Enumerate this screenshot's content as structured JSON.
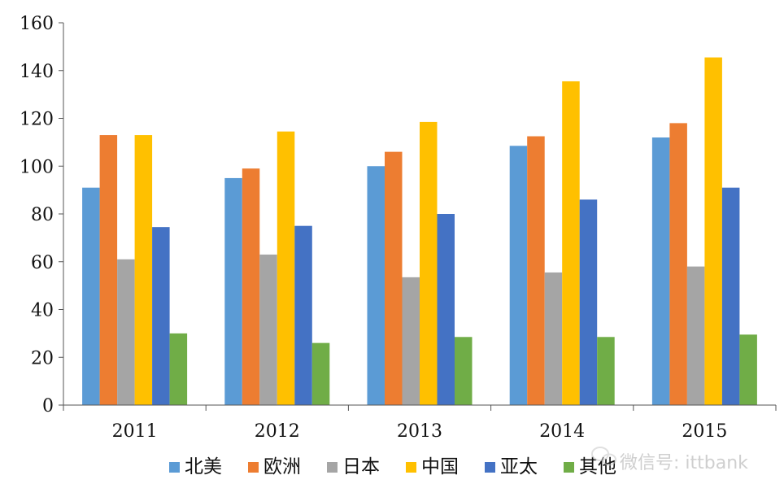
{
  "chart_data": {
    "type": "bar",
    "categories": [
      "2011",
      "2012",
      "2013",
      "2014",
      "2015"
    ],
    "series": [
      {
        "name": "北美",
        "color": "#5B9BD5",
        "values": [
          91,
          95,
          100,
          108.5,
          112
        ]
      },
      {
        "name": "欧洲",
        "color": "#ED7D31",
        "values": [
          113,
          99,
          106,
          112.5,
          118
        ]
      },
      {
        "name": "日本",
        "color": "#A5A5A5",
        "values": [
          61,
          63,
          53.5,
          55.5,
          58
        ]
      },
      {
        "name": "中国",
        "color": "#FFC000",
        "values": [
          113,
          114.5,
          118.5,
          135.5,
          145.5
        ]
      },
      {
        "name": "亚太",
        "color": "#4472C4",
        "values": [
          74.5,
          75,
          80,
          86,
          91
        ]
      },
      {
        "name": "其他",
        "color": "#70AD47",
        "values": [
          30,
          26,
          28.5,
          28.5,
          29.5
        ]
      }
    ],
    "yticks": [
      0,
      20,
      40,
      60,
      80,
      100,
      120,
      140,
      160
    ],
    "ylim": [
      0,
      160
    ],
    "grid": false,
    "legend_position": "bottom"
  },
  "watermark": {
    "icon": "wechat-icon",
    "text": "微信号: ittbank"
  }
}
